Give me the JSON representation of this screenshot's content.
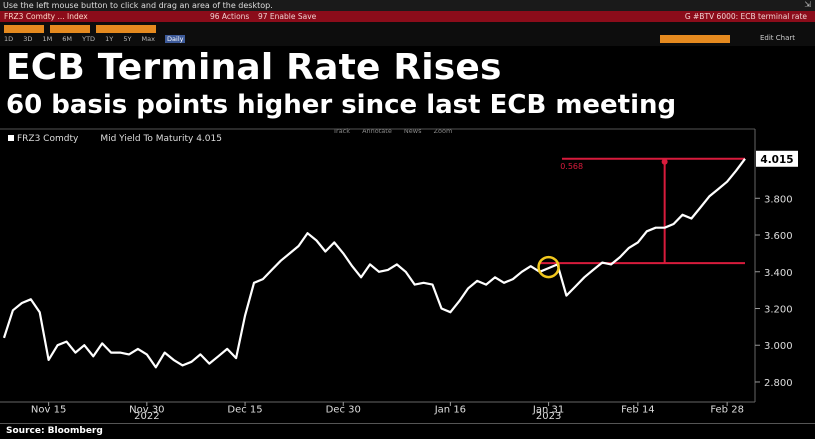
{
  "top_hint": "Use the left mouse button to click and drag an area of the desktop.",
  "command_bar": {
    "security": "FRZ3 Comdty ... Index",
    "actions": "96 Actions",
    "enable_save": "97 Enable Save",
    "function_title": "G #BTV 6000: ECB terminal rate"
  },
  "toolbar": {
    "ranges": [
      "1D",
      "3D",
      "1M",
      "6M",
      "YTD",
      "1Y",
      "5Y",
      "Max"
    ],
    "selected_range": "Daily",
    "right_buttons": [
      "Edit Chart"
    ]
  },
  "headline": "ECB Terminal Rate Rises",
  "subheadline": "60 basis points higher since last ECB meeting",
  "legend": {
    "ticker": "FRZ3 Comdty",
    "series_label": "Mid Yield To Maturity 4.015"
  },
  "chart_tools": [
    "Track",
    "Annotate",
    "News",
    "Zoom"
  ],
  "source": "Source: Bloomberg",
  "colors": {
    "line": "#ffffff",
    "annotation": "#d81b3c",
    "highlight_circle": "#f2c81e",
    "last_value_box": "#ffffff"
  },
  "chart_data": {
    "type": "line",
    "title": "ECB Terminal Rate Rises",
    "subtitle": "60 basis points higher since last ECB meeting",
    "xlabel": "",
    "ylabel": "",
    "ylim": [
      2.74,
      4.09
    ],
    "yticks": [
      "2.800",
      "3.000",
      "3.200",
      "3.400",
      "3.600",
      "3.800"
    ],
    "last_value": "4.015",
    "annotation_label": "0.568",
    "xticks": [
      {
        "label": "Nov 15",
        "i": 5
      },
      {
        "label": "Nov 30",
        "i": 16
      },
      {
        "label": "Dec 15",
        "i": 27
      },
      {
        "label": "Dec 30",
        "i": 38
      },
      {
        "label": "Jan 16",
        "i": 50
      },
      {
        "label": "Jan 31",
        "i": 61
      },
      {
        "label": "Feb 14",
        "i": 71
      },
      {
        "label": "Feb 28",
        "i": 81
      }
    ],
    "year_labels": [
      {
        "label": "2022",
        "i": 16
      },
      {
        "label": "2023",
        "i": 61
      }
    ],
    "highlight_index": 62,
    "reference_level_low": 3.447,
    "reference_level_high": 4.015,
    "series": [
      {
        "values": [
          3.04,
          3.19,
          3.23,
          3.25,
          3.18,
          2.92,
          3.0,
          3.02,
          2.96,
          3.0,
          2.94,
          3.01,
          2.96,
          2.96,
          2.95,
          2.98,
          2.95,
          2.88,
          2.96,
          2.92,
          2.89,
          2.91,
          2.95,
          2.9,
          2.94,
          2.98,
          2.93,
          3.16,
          3.34,
          3.36,
          3.41,
          3.46,
          3.5,
          3.54,
          3.61,
          3.57,
          3.51,
          3.56,
          3.5,
          3.43,
          3.37,
          3.44,
          3.4,
          3.41,
          3.44,
          3.4,
          3.33,
          3.34,
          3.33,
          3.2,
          3.18,
          3.24,
          3.31,
          3.35,
          3.33,
          3.37,
          3.34,
          3.36,
          3.4,
          3.43,
          3.4,
          3.42,
          3.44,
          3.27,
          3.32,
          3.37,
          3.41,
          3.45,
          3.44,
          3.48,
          3.53,
          3.56,
          3.62,
          3.64,
          3.64,
          3.66,
          3.71,
          3.69,
          3.75,
          3.81,
          3.85,
          3.89,
          3.95,
          4.015
        ]
      }
    ]
  }
}
